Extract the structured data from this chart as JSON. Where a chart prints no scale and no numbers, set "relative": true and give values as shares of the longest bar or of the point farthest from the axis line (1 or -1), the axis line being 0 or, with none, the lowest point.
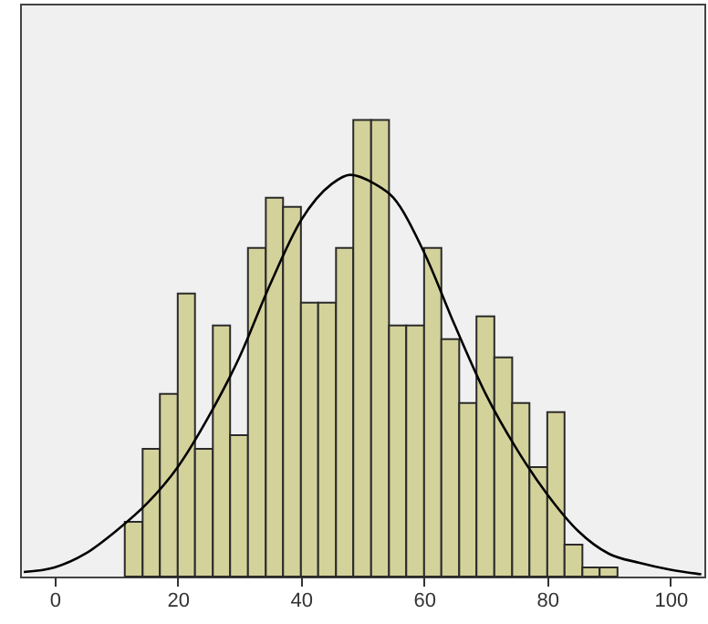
{
  "chart_data": {
    "type": "histogram",
    "relative": true,
    "grid": false,
    "bins": [
      11.4,
      14.3,
      17.1,
      20.0,
      22.8,
      25.7,
      28.5,
      31.4,
      34.3,
      37.1,
      40.0,
      42.8,
      45.7,
      48.5,
      51.4,
      54.3,
      57.1,
      60.0,
      62.8,
      65.7,
      68.5,
      71.4,
      74.3,
      77.1,
      80.0,
      82.8,
      85.7,
      88.5,
      91.4
    ],
    "xlim": [
      -5.6,
      105.5
    ],
    "xticks": [
      0,
      20,
      40,
      60,
      80,
      100
    ],
    "series": [
      {
        "color": "#d4d29b",
        "values": [
          0.12,
          0.28,
          0.4,
          0.62,
          0.28,
          0.55,
          0.31,
          0.72,
          0.83,
          0.81,
          0.6,
          0.6,
          0.72,
          1,
          1,
          0.55,
          0.55,
          0.72,
          0.52,
          0.38,
          0.57,
          0.48,
          0.38,
          0.24,
          0.36,
          0.07,
          0.02,
          0.02
        ]
      },
      {
        "type": "line",
        "color": "#000000",
        "x": [
          -5,
          0,
          5,
          10,
          15,
          20,
          25,
          30,
          35,
          40,
          45,
          48,
          52,
          55,
          60,
          65,
          70,
          75,
          80,
          85,
          90,
          95,
          100,
          105
        ],
        "values": [
          0.01,
          0.02,
          0.05,
          0.1,
          0.16,
          0.24,
          0.35,
          0.48,
          0.64,
          0.78,
          0.86,
          0.88,
          0.86,
          0.83,
          0.71,
          0.55,
          0.4,
          0.28,
          0.18,
          0.1,
          0.05,
          0.03,
          0.015,
          0.005
        ]
      }
    ]
  }
}
